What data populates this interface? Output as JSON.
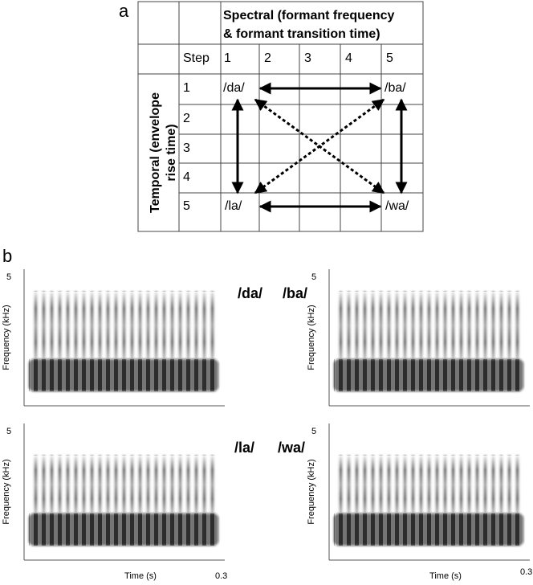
{
  "panel_a": {
    "label": "a",
    "header": [
      "Spectral (formant frequency",
      "& formant transition time)"
    ],
    "step_label": "Step",
    "columns": [
      "1",
      "2",
      "3",
      "4",
      "5"
    ],
    "row_header": [
      "Temporal (envelope",
      "rise time)"
    ],
    "rows": [
      "1",
      "2",
      "3",
      "4",
      "5"
    ],
    "corners": {
      "top_left": "/da/",
      "top_right": "/ba/",
      "bottom_left": "/la/",
      "bottom_right": "/wa/"
    }
  },
  "panel_b": {
    "label": "b",
    "syllables_top": [
      "/da/",
      "/ba/"
    ],
    "syllables_bottom": [
      "/la/",
      "/wa/"
    ],
    "spectrograms": [
      {
        "y_label": "Frequency (kHz)",
        "y_tick": "5"
      },
      {
        "y_label": "Frequency (kHz)",
        "y_tick": "5"
      },
      {
        "y_label": "Frequency (kHz)",
        "y_tick": "5",
        "x_label": "Time (s)",
        "x_tick": "0.3"
      },
      {
        "y_label": "Frequency (kHz)",
        "y_tick": "5",
        "x_label": "Time (s)",
        "x_tick": "0.3"
      }
    ]
  }
}
